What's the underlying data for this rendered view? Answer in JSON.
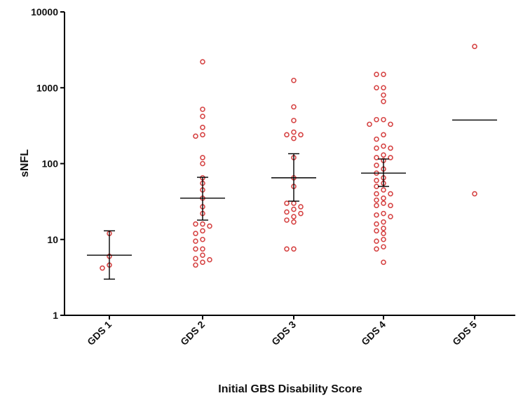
{
  "chart_data": {
    "type": "scatter",
    "title": "",
    "xlabel": "Initial GBS Disability Score",
    "ylabel": "sNFL",
    "yscale": "log",
    "ylim": [
      1,
      10000
    ],
    "yticks": [
      "1",
      "10",
      "100",
      "1000",
      "10000"
    ],
    "categories": [
      "GDS 1",
      "GDS 2",
      "GDS 3",
      "GDS 4",
      "GDS 5"
    ],
    "colors": {
      "points": "#d64545",
      "summary": "#000000",
      "axis": "#000000"
    },
    "series": [
      {
        "category": "GDS 1",
        "values": [
          12,
          6,
          4.6,
          4.2
        ],
        "center": 6.2,
        "error_low": 3,
        "error_high": 13
      },
      {
        "category": "GDS 2",
        "values": [
          2200,
          520,
          420,
          300,
          240,
          230,
          120,
          100,
          65,
          55,
          45,
          35,
          27,
          22,
          16,
          16,
          15,
          13,
          12,
          10,
          9.5,
          7.5,
          7.5,
          6.2,
          5.6,
          5.4,
          5,
          4.6
        ],
        "center": 35,
        "error_low": 18,
        "error_high": 66
      },
      {
        "category": "GDS 3",
        "values": [
          1250,
          560,
          370,
          260,
          240,
          240,
          215,
          120,
          65,
          50,
          30,
          30,
          27,
          25,
          23,
          22,
          20,
          18,
          17,
          7.5,
          7.5
        ],
        "center": 65,
        "error_low": 32,
        "error_high": 135
      },
      {
        "category": "GDS 4",
        "values": [
          1500,
          1500,
          1000,
          1000,
          800,
          660,
          380,
          380,
          330,
          330,
          240,
          210,
          170,
          160,
          160,
          130,
          120,
          120,
          110,
          95,
          85,
          75,
          65,
          60,
          55,
          50,
          45,
          40,
          40,
          35,
          33,
          30,
          28,
          28,
          22,
          21,
          20,
          17,
          16,
          14,
          13,
          12,
          10,
          9.5,
          8,
          7.5,
          5
        ],
        "center": 75,
        "error_low": 50,
        "error_high": 115
      },
      {
        "category": "GDS 5",
        "values": [
          3500,
          40
        ],
        "center": 375,
        "error_low": null,
        "error_high": null
      }
    ]
  }
}
